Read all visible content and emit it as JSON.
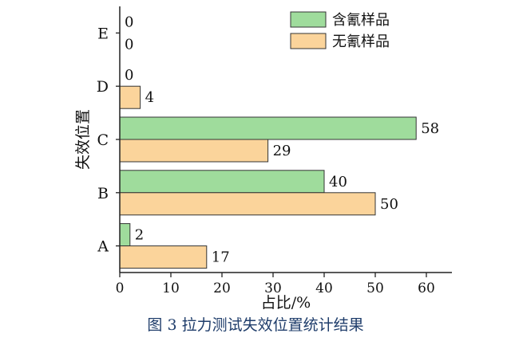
{
  "chart_data": {
    "type": "bar",
    "orientation": "horizontal",
    "categories": [
      "A",
      "B",
      "C",
      "D",
      "E"
    ],
    "series": [
      {
        "name": "含氰样品",
        "values": [
          2,
          40,
          58,
          0,
          0
        ],
        "color": "#9fdc9c"
      },
      {
        "name": "无氰样品",
        "values": [
          17,
          50,
          29,
          4,
          0
        ],
        "color": "#fbd49b"
      }
    ],
    "xlabel": "占比/%",
    "ylabel": "失效位置",
    "xlim": [
      0,
      65
    ],
    "xticks": [
      0,
      10,
      20,
      30,
      40,
      50,
      60
    ],
    "grid": false,
    "legend_position": "top-right"
  },
  "caption": "图 3   拉力测试失效位置统计结果"
}
